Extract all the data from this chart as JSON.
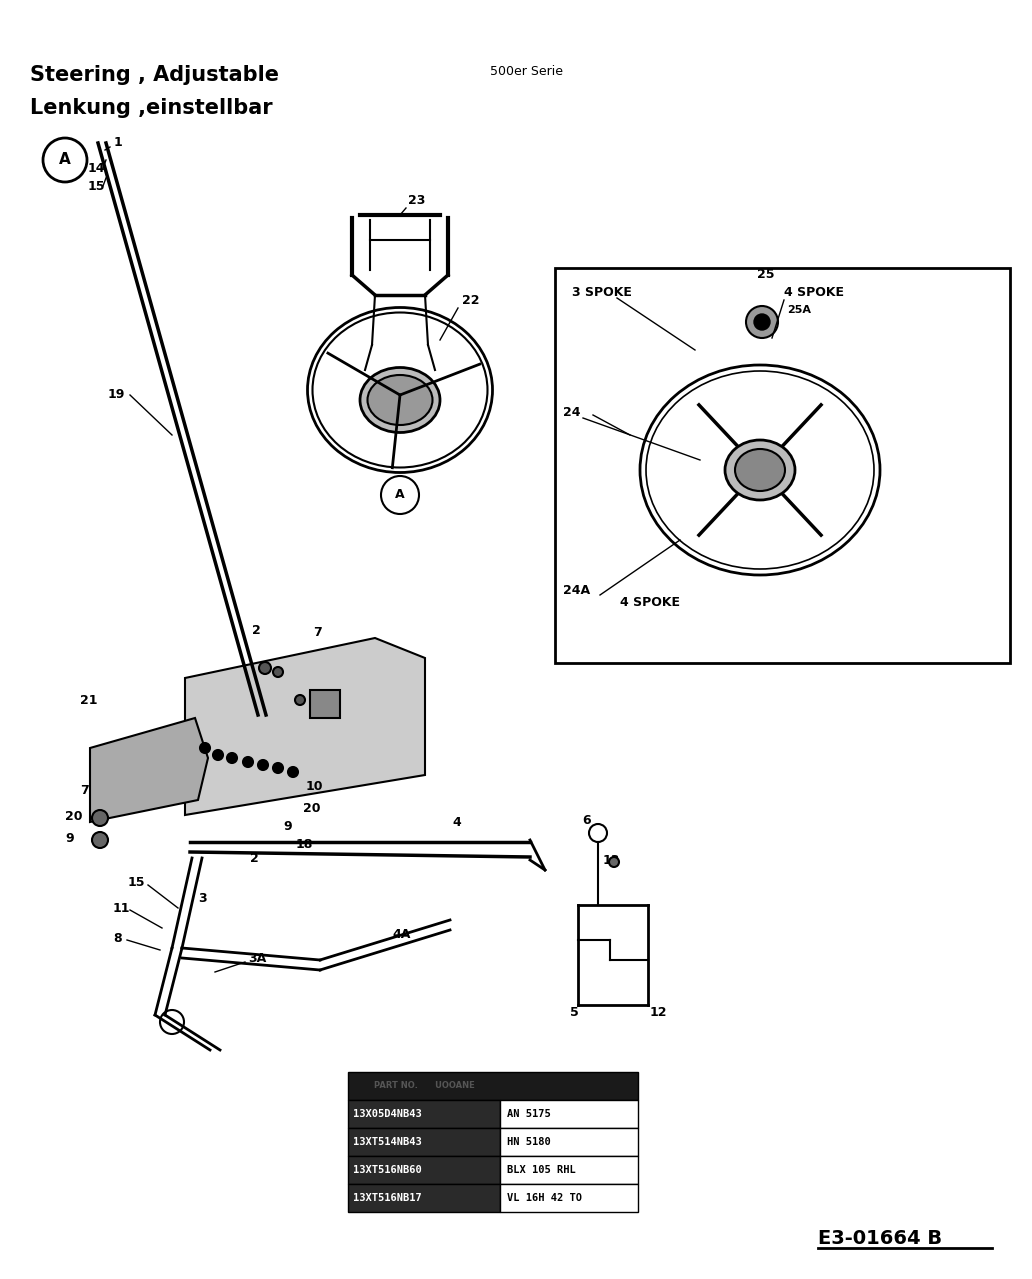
{
  "title_line1": "Steering , Adjustable",
  "title_line2": "Lenkung ,einstellbar",
  "subtitle": "500er Serie",
  "diagram_code": "E3-01664 B",
  "table_rows": [
    [
      "13X05D4NB43",
      "AN 5175"
    ],
    [
      "13XT514NB43",
      "HN 5180"
    ],
    [
      "13XT516NB60",
      "BLX 105 RHL"
    ],
    [
      "13XT516NB17",
      "VL 16H 42 TO"
    ]
  ],
  "bg_color": "#ffffff",
  "text_color": "#000000",
  "fig_width": 10.32,
  "fig_height": 12.79
}
